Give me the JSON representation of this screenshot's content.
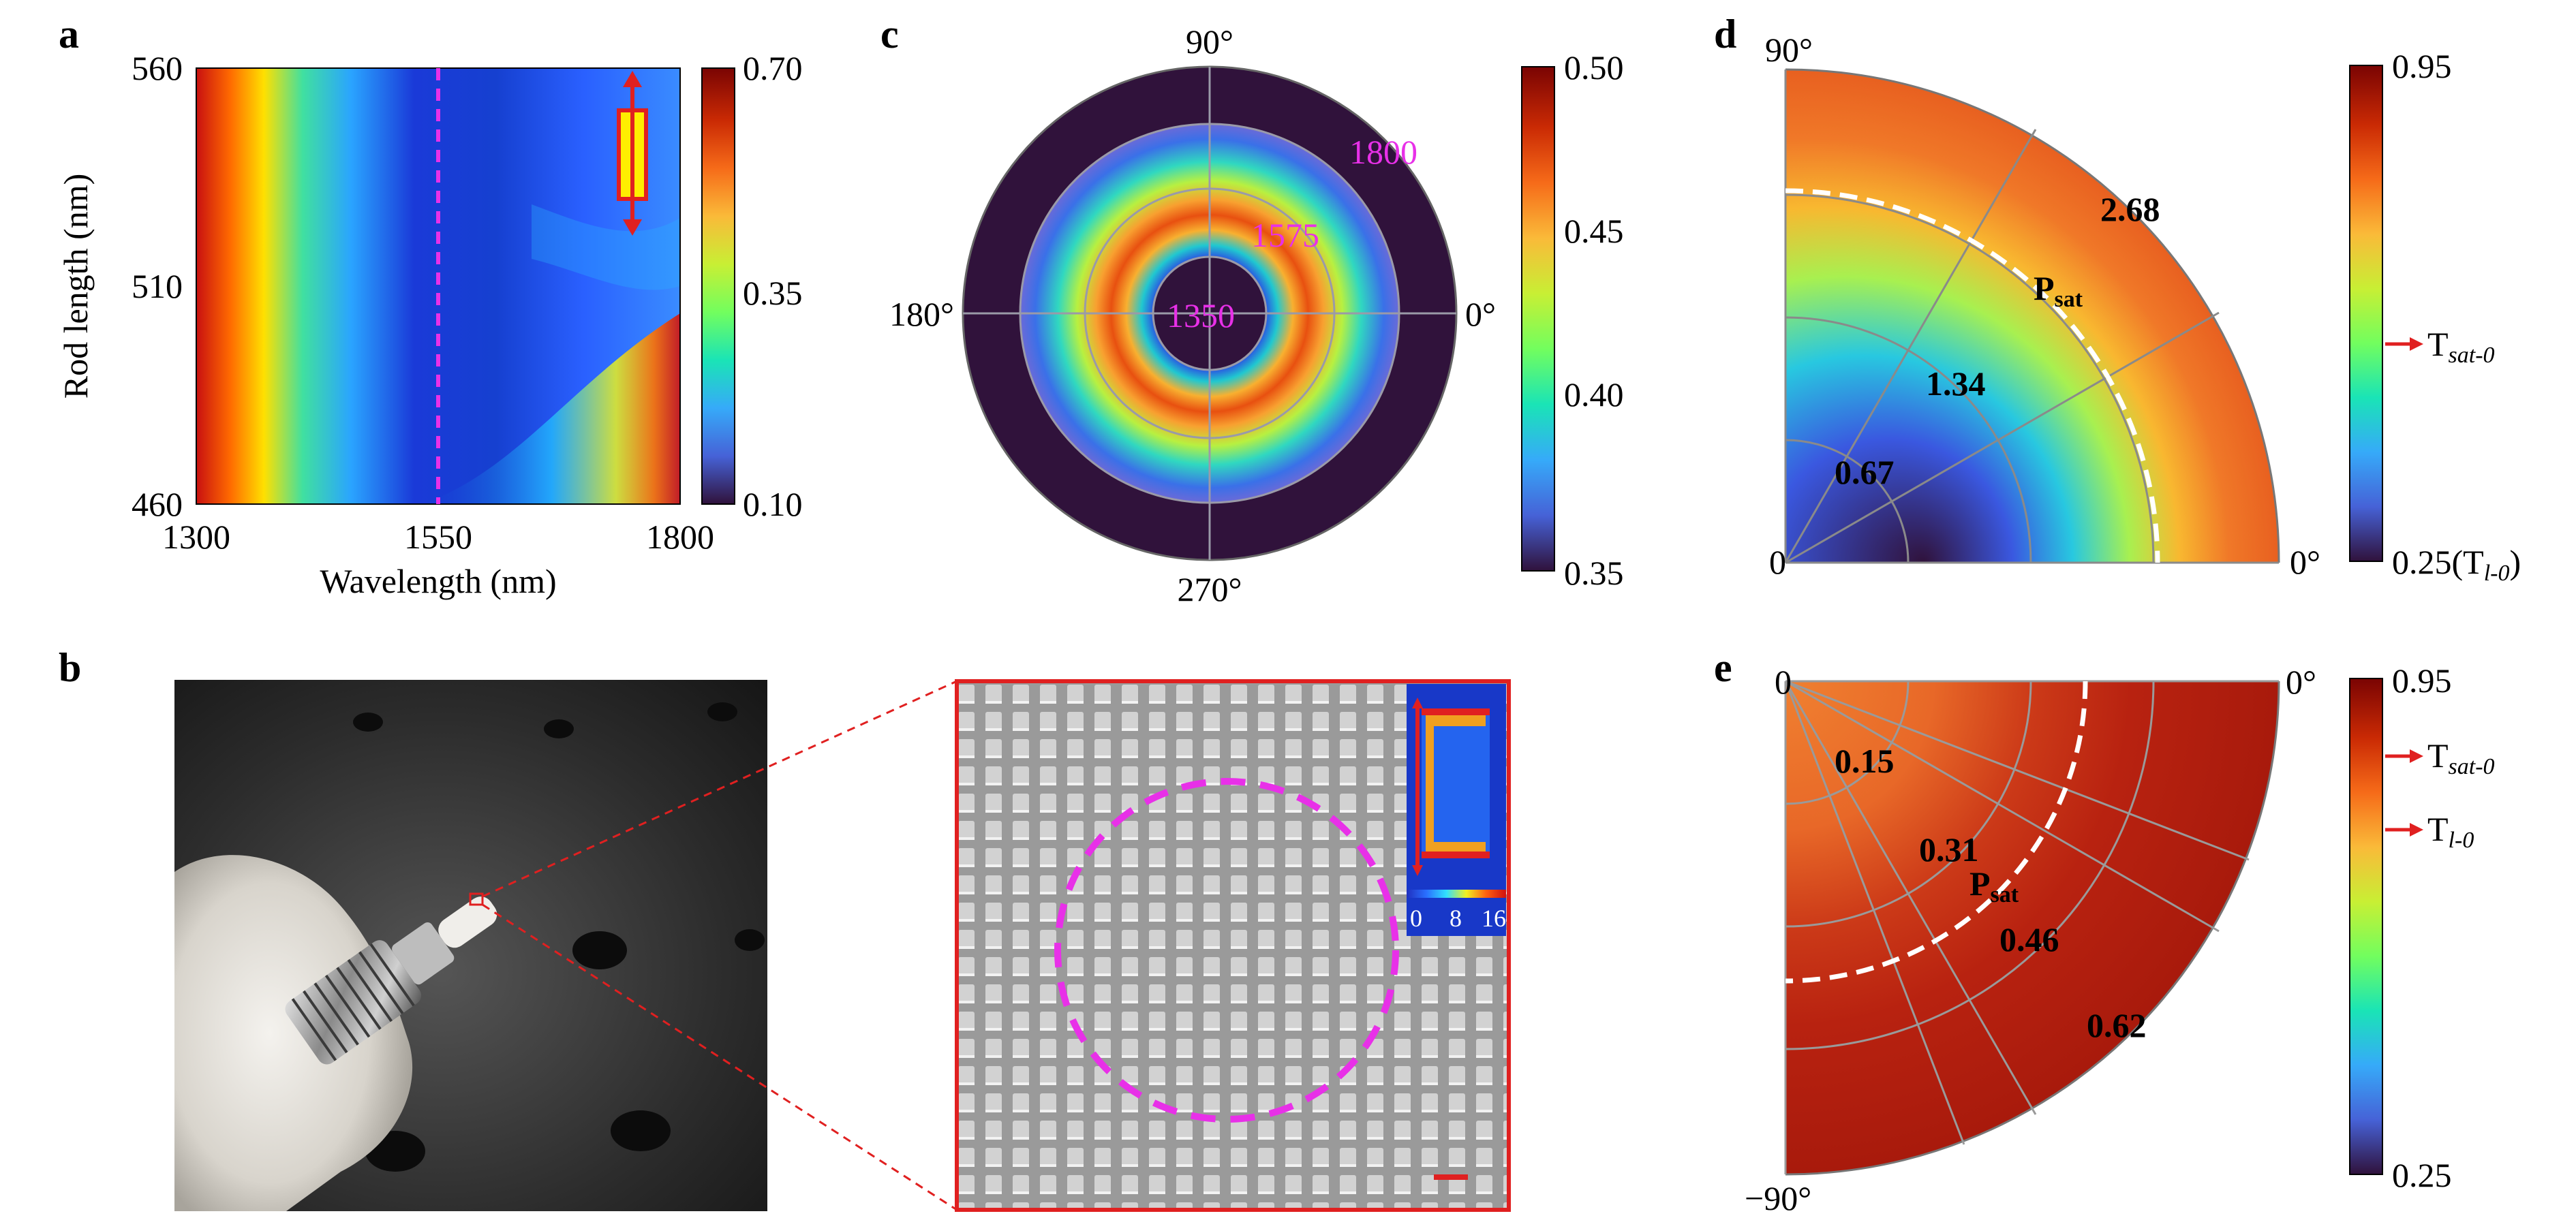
{
  "panel_labels": {
    "a": "a",
    "b": "b",
    "c": "c",
    "d": "d",
    "e": "e"
  },
  "colors": {
    "colormap": [
      "#30123b",
      "#4662d7",
      "#36aaf9",
      "#1ae4b6",
      "#72fe5e",
      "#c8ef34",
      "#faba39",
      "#f66b19",
      "#ca2a04",
      "#7a0403"
    ],
    "magenta": "#e830e8",
    "red": "#e02020",
    "yellow": "#ffee00"
  },
  "panel_a": {
    "x_ticks": [
      "1300",
      "1550",
      "1800"
    ],
    "y_ticks": [
      "560",
      "510",
      "460"
    ],
    "xlabel": "Wavelength (nm)",
    "ylabel": "Rod length (nm)",
    "colorbar_ticks": [
      "0.70",
      "0.35",
      "0.10"
    ]
  },
  "panel_c": {
    "angle_labels": {
      "top": "90°",
      "left": "180°",
      "right": "0°",
      "bottom": "270°"
    },
    "ring_labels": [
      "1350",
      "1575",
      "1800"
    ],
    "colorbar_ticks": [
      "0.50",
      "0.45",
      "0.40",
      "0.35"
    ]
  },
  "panel_d": {
    "angle_labels": {
      "top": "90°",
      "right": "0°",
      "origin": "0"
    },
    "radial_labels": [
      "0.67",
      "1.34",
      "2.68"
    ],
    "psat_main": "P",
    "psat_sub": "sat",
    "colorbar_top": "0.95",
    "colorbar_bottom": "0.25(T",
    "colorbar_bottom_sub": "l-0",
    "colorbar_bottom_close": ")",
    "marker_main": "T",
    "marker_sub": "sat-0"
  },
  "panel_e": {
    "angle_labels": {
      "origin": "0",
      "right": "0°",
      "bottom": "−90°"
    },
    "radial_labels": [
      "0.15",
      "0.31",
      "0.46",
      "0.62"
    ],
    "psat_main": "P",
    "psat_sub": "sat",
    "colorbar_top": "0.95",
    "colorbar_bottom": "0.25",
    "markers": [
      {
        "main": "T",
        "sub": "sat-0"
      },
      {
        "main": "T",
        "sub": "l-0"
      }
    ]
  },
  "panel_b": {
    "inset_ticks": [
      "0",
      "8",
      "16"
    ]
  }
}
